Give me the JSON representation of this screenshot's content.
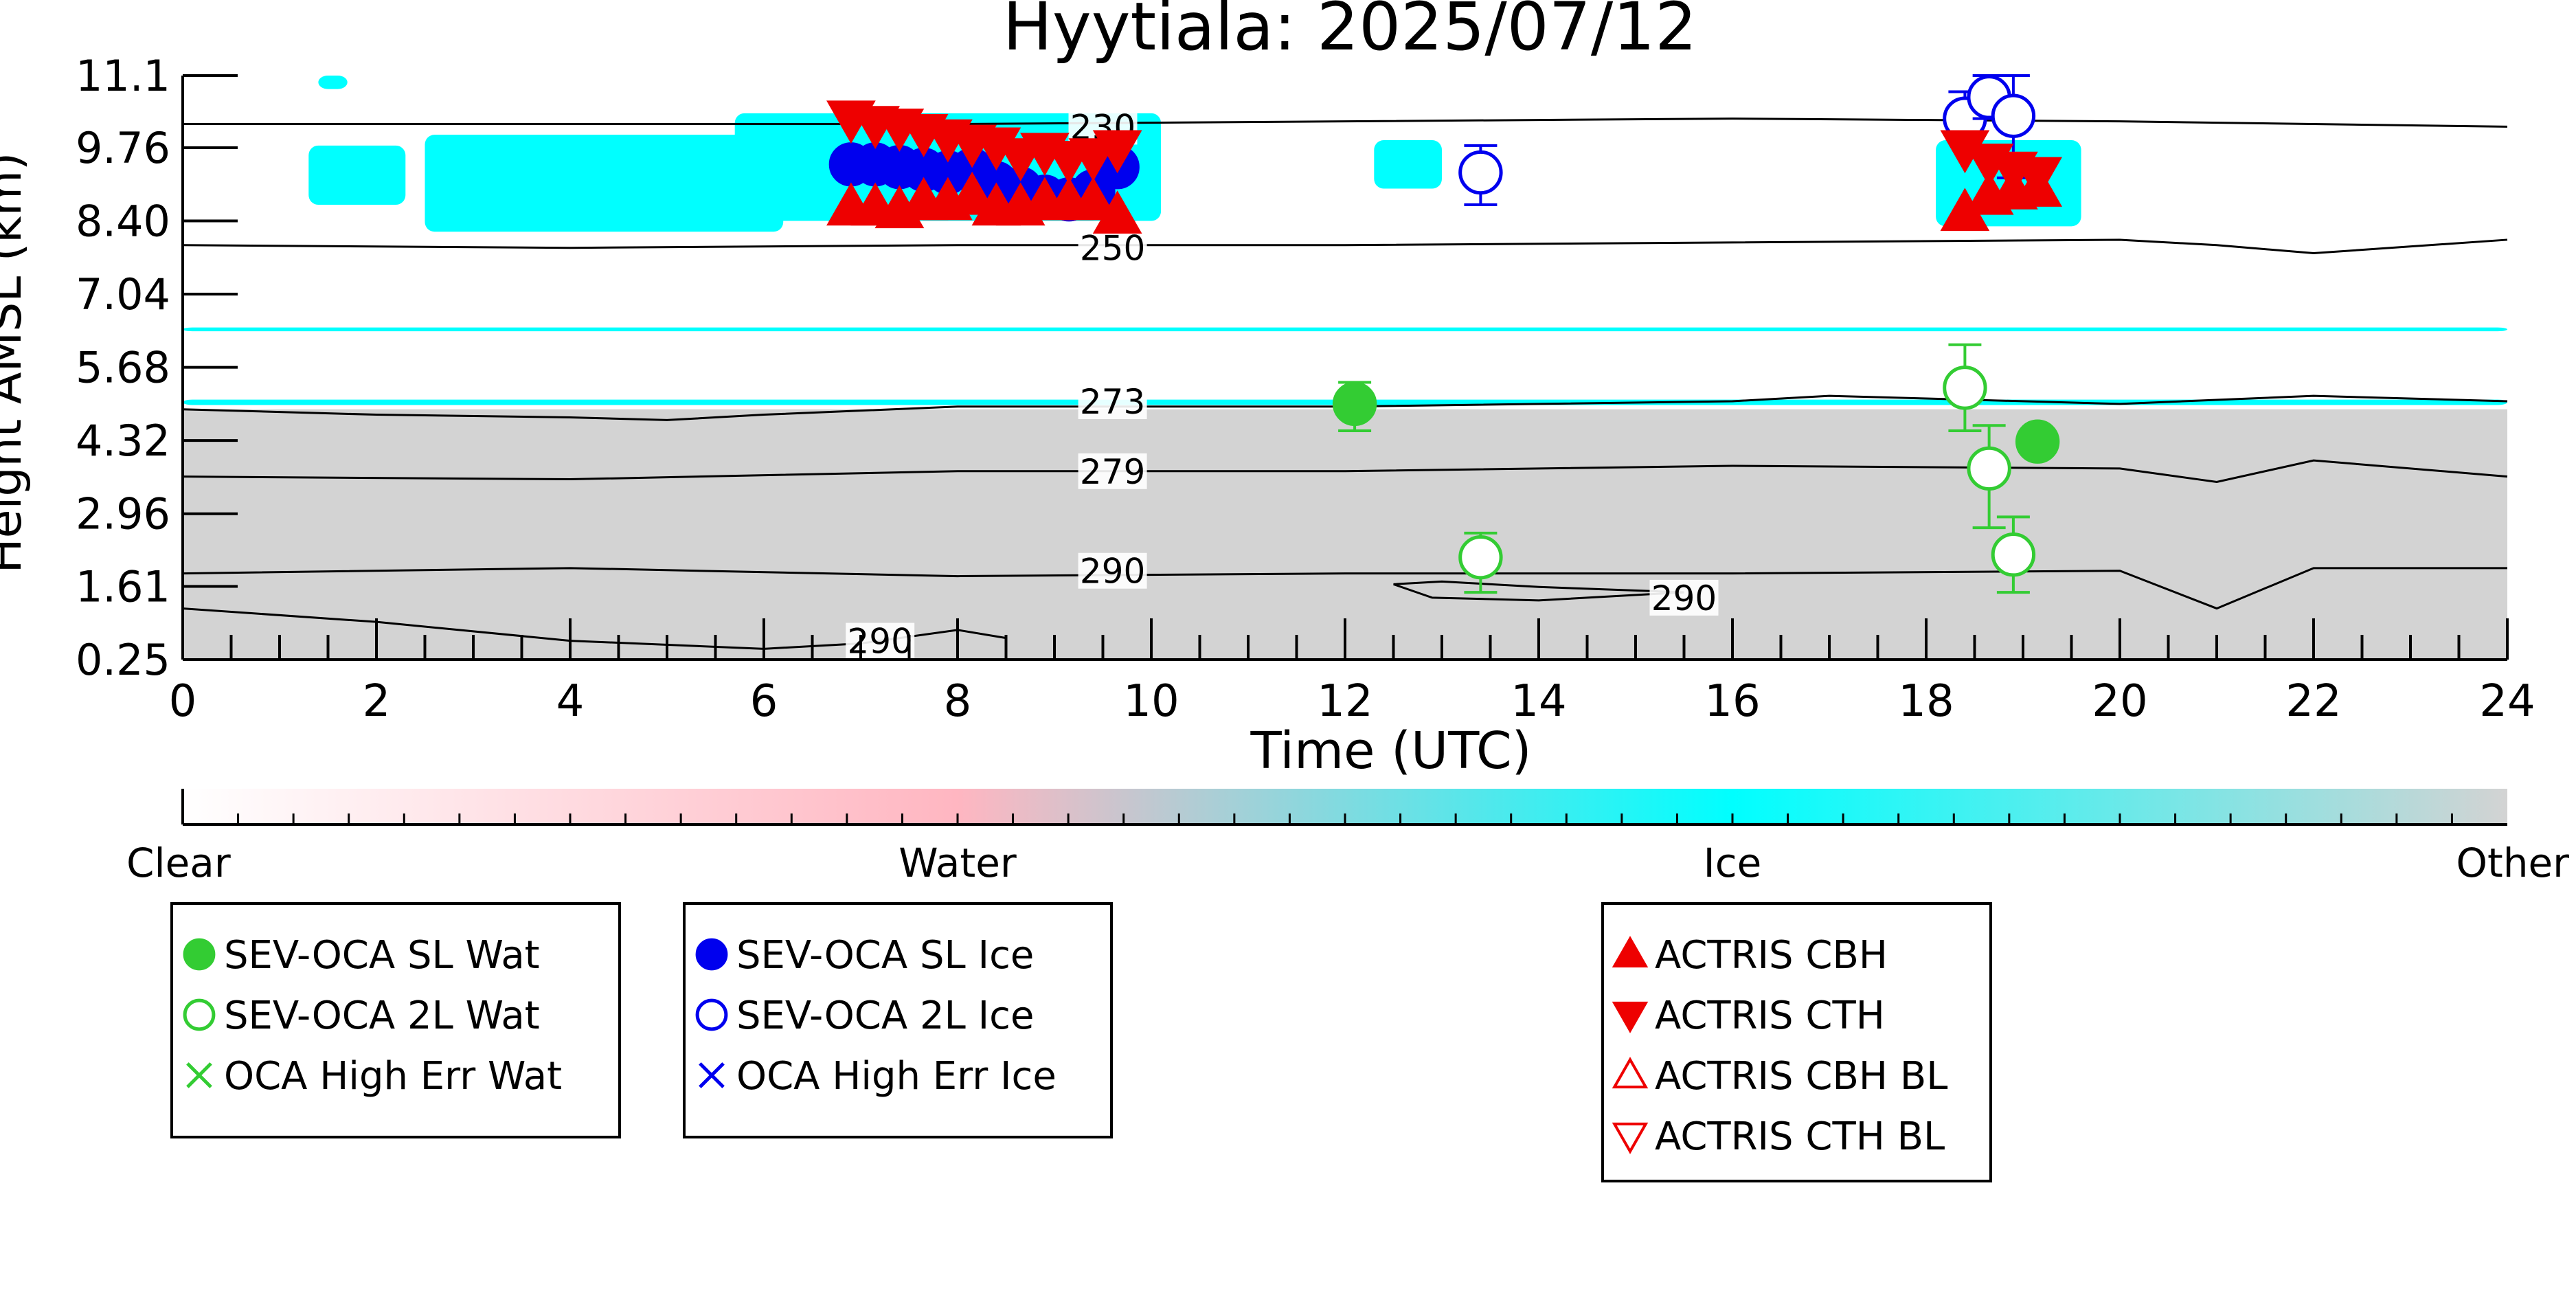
{
  "chart_data": {
    "type": "scatter",
    "title": "Hyytiala: 2025/07/12",
    "xlabel": "Time (UTC)",
    "ylabel": "Height AMSL (km)",
    "xlim": [
      0,
      24
    ],
    "ylim": [
      0.25,
      11.1
    ],
    "x_ticks": [
      "0",
      "2",
      "4",
      "6",
      "8",
      "10",
      "12",
      "14",
      "16",
      "18",
      "20",
      "22",
      "24"
    ],
    "y_ticks": [
      "0.25",
      "1.61",
      "2.96",
      "4.32",
      "5.68",
      "7.04",
      "8.40",
      "9.76",
      "11.1"
    ],
    "grid": false,
    "colorbar": {
      "labels": [
        "Clear",
        "Water",
        "Ice",
        "Other"
      ],
      "colors": [
        "#ffffff",
        "#ffb6c1",
        "#00ffff",
        "#d3d3d3"
      ]
    },
    "background_classes": {
      "ice": [
        {
          "x": [
            1.4,
            1.7
          ],
          "y": [
            10.85,
            11.1
          ]
        },
        {
          "x": [
            1.3,
            2.3
          ],
          "y": [
            8.7,
            9.8
          ]
        },
        {
          "x": [
            2.5,
            6.2
          ],
          "y": [
            8.2,
            10.0
          ]
        },
        {
          "x": [
            5.7,
            10.1
          ],
          "y": [
            8.4,
            10.4
          ]
        },
        {
          "x": [
            12.3,
            13.0
          ],
          "y": [
            9.0,
            9.9
          ]
        },
        {
          "x": [
            18.1,
            19.6
          ],
          "y": [
            8.3,
            9.9
          ]
        },
        {
          "x": [
            0,
            24
          ],
          "y": [
            6.35,
            6.42
          ]
        },
        {
          "x": [
            0,
            24
          ],
          "y": [
            4.98,
            5.08
          ]
        }
      ],
      "other": [
        {
          "x": [
            0,
            24
          ],
          "y": [
            0.25,
            4.9
          ]
        }
      ]
    },
    "isotherms": [
      {
        "label": "230",
        "x": [
          0,
          4,
          8,
          12,
          16,
          20,
          24
        ],
        "y": [
          10.2,
          10.2,
          10.2,
          10.25,
          10.3,
          10.25,
          10.15
        ],
        "label_at": [
          9.5,
          10.15
        ]
      },
      {
        "label": "250",
        "x": [
          0,
          4,
          8,
          12,
          16,
          20,
          21,
          22,
          24
        ],
        "y": [
          7.95,
          7.9,
          7.95,
          7.95,
          8.0,
          8.05,
          7.95,
          7.8,
          8.05
        ],
        "label_at": [
          9.6,
          7.9
        ]
      },
      {
        "label": "273",
        "x": [
          0,
          2,
          4,
          5,
          6,
          8,
          12,
          16,
          17,
          18,
          20,
          22,
          24
        ],
        "y": [
          4.9,
          4.8,
          4.75,
          4.7,
          4.8,
          4.95,
          4.95,
          5.05,
          5.15,
          5.1,
          5.0,
          5.15,
          5.05
        ],
        "label_at": [
          9.6,
          5.05
        ]
      },
      {
        "label": "279",
        "x": [
          0,
          4,
          8,
          12,
          16,
          20,
          20.8,
          21,
          22,
          24
        ],
        "y": [
          3.65,
          3.6,
          3.75,
          3.75,
          3.85,
          3.8,
          3.6,
          3.55,
          3.95,
          3.65
        ],
        "label_at": [
          9.6,
          3.75
        ]
      },
      {
        "label": "290",
        "x": [
          0,
          4,
          8,
          12,
          16,
          20,
          21,
          22,
          24
        ],
        "y": [
          1.85,
          1.95,
          1.8,
          1.85,
          1.85,
          1.9,
          1.2,
          1.95,
          1.95
        ],
        "label_at": [
          9.6,
          1.9
        ]
      },
      {
        "label": "290",
        "x": [
          12.5,
          13,
          14,
          15.5,
          14,
          12.9,
          12.5
        ],
        "y": [
          1.65,
          1.7,
          1.6,
          1.5,
          1.35,
          1.4,
          1.65
        ],
        "label_at": [
          15.5,
          1.4
        ]
      },
      {
        "label": "290",
        "x": [
          0,
          2,
          4,
          6,
          7,
          8,
          8.5
        ],
        "y": [
          1.2,
          0.95,
          0.6,
          0.45,
          0.55,
          0.8,
          0.65
        ],
        "label_at": [
          7.2,
          0.6
        ]
      }
    ],
    "series": [
      {
        "name": "SEV-OCA SL Wat",
        "marker": "circle-filled",
        "color": "#33cc33",
        "points": [
          {
            "x": 12.1,
            "y": 5.0,
            "err": [
              4.5,
              5.4
            ]
          },
          {
            "x": 19.15,
            "y": 4.3,
            "err": [
              4.1,
              4.5
            ]
          }
        ]
      },
      {
        "name": "SEV-OCA 2L Wat",
        "marker": "circle-open",
        "color": "#33cc33",
        "points": [
          {
            "x": 13.4,
            "y": 2.15,
            "err": [
              1.5,
              2.6
            ]
          },
          {
            "x": 18.4,
            "y": 5.3,
            "err": [
              4.5,
              6.1
            ]
          },
          {
            "x": 18.65,
            "y": 3.8,
            "err": [
              2.7,
              4.6
            ]
          },
          {
            "x": 18.9,
            "y": 2.2,
            "err": [
              1.5,
              2.9
            ]
          }
        ]
      },
      {
        "name": "OCA High Err Wat",
        "marker": "x",
        "color": "#33cc33",
        "points": []
      },
      {
        "name": "SEV-OCA SL Ice",
        "marker": "circle-filled",
        "color": "#0000ee",
        "points": [
          {
            "x": 6.9,
            "y": 9.45
          },
          {
            "x": 7.15,
            "y": 9.45
          },
          {
            "x": 7.4,
            "y": 9.4
          },
          {
            "x": 7.65,
            "y": 9.35
          },
          {
            "x": 7.9,
            "y": 9.3
          },
          {
            "x": 8.15,
            "y": 9.35
          },
          {
            "x": 8.4,
            "y": 9.1
          },
          {
            "x": 8.65,
            "y": 9.0
          },
          {
            "x": 8.9,
            "y": 8.85
          },
          {
            "x": 9.15,
            "y": 8.8
          },
          {
            "x": 9.4,
            "y": 8.95
          },
          {
            "x": 9.65,
            "y": 9.4
          }
        ]
      },
      {
        "name": "SEV-OCA 2L Ice",
        "marker": "circle-open",
        "color": "#0000ee",
        "points": [
          {
            "x": 13.4,
            "y": 9.3,
            "err": [
              8.7,
              9.8
            ]
          },
          {
            "x": 18.4,
            "y": 10.3,
            "err": [
              9.9,
              10.8
            ]
          },
          {
            "x": 18.65,
            "y": 10.7,
            "err": [
              10.3,
              11.1
            ]
          },
          {
            "x": 18.9,
            "y": 10.35,
            "err": [
              9.2,
              11.1
            ]
          }
        ]
      },
      {
        "name": "OCA High Err Ice",
        "marker": "x",
        "color": "#0000ee",
        "points": []
      },
      {
        "name": "ACTRIS CBH",
        "marker": "triangle-up-filled",
        "color": "#ee0000",
        "points": [
          {
            "x": 6.9,
            "y": 8.65
          },
          {
            "x": 7.15,
            "y": 8.65
          },
          {
            "x": 7.4,
            "y": 8.6
          },
          {
            "x": 7.65,
            "y": 8.75
          },
          {
            "x": 7.9,
            "y": 8.75
          },
          {
            "x": 8.15,
            "y": 8.85
          },
          {
            "x": 8.4,
            "y": 8.65
          },
          {
            "x": 8.65,
            "y": 8.65
          },
          {
            "x": 8.9,
            "y": 8.75
          },
          {
            "x": 9.15,
            "y": 8.75
          },
          {
            "x": 9.4,
            "y": 8.75
          },
          {
            "x": 9.65,
            "y": 8.5
          },
          {
            "x": 18.4,
            "y": 8.55
          },
          {
            "x": 18.65,
            "y": 8.85
          },
          {
            "x": 18.9,
            "y": 8.95
          },
          {
            "x": 19.15,
            "y": 9.0
          }
        ]
      },
      {
        "name": "ACTRIS CTH",
        "marker": "triangle-down-filled",
        "color": "#ee0000",
        "points": [
          {
            "x": 6.9,
            "y": 10.3
          },
          {
            "x": 7.15,
            "y": 10.2
          },
          {
            "x": 7.4,
            "y": 10.15
          },
          {
            "x": 7.65,
            "y": 10.05
          },
          {
            "x": 7.9,
            "y": 9.95
          },
          {
            "x": 8.15,
            "y": 9.85
          },
          {
            "x": 8.4,
            "y": 9.8
          },
          {
            "x": 8.65,
            "y": 9.6
          },
          {
            "x": 8.9,
            "y": 9.7
          },
          {
            "x": 9.15,
            "y": 9.55
          },
          {
            "x": 9.4,
            "y": 9.6
          },
          {
            "x": 9.65,
            "y": 9.75
          },
          {
            "x": 18.4,
            "y": 9.75
          },
          {
            "x": 18.65,
            "y": 9.5
          },
          {
            "x": 18.9,
            "y": 9.35
          },
          {
            "x": 19.15,
            "y": 9.25
          }
        ]
      },
      {
        "name": "ACTRIS CBH BL",
        "marker": "triangle-up-open",
        "color": "#ee0000",
        "points": []
      },
      {
        "name": "ACTRIS CTH BL",
        "marker": "triangle-down-open",
        "color": "#ee0000",
        "points": []
      }
    ],
    "legend": [
      {
        "placement": "bottom-left",
        "items": [
          "SEV-OCA SL Wat",
          "SEV-OCA 2L Wat",
          "OCA High Err Wat"
        ]
      },
      {
        "placement": "bottom-center-left",
        "items": [
          "SEV-OCA SL Ice",
          "SEV-OCA 2L Ice",
          "OCA High Err Ice"
        ]
      },
      {
        "placement": "bottom-center-right",
        "items": [
          "ACTRIS CBH",
          "ACTRIS CTH",
          "ACTRIS CBH BL",
          "ACTRIS CTH BL"
        ]
      }
    ]
  }
}
